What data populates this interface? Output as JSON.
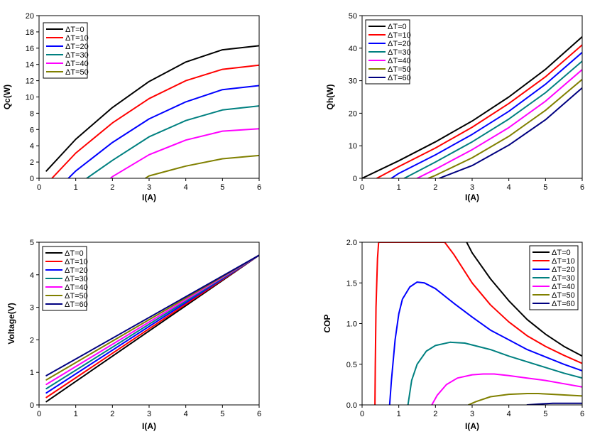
{
  "legend_labels": [
    "ΔT=0",
    "ΔT=10",
    "ΔT=20",
    "ΔT=30",
    "ΔT=40",
    "ΔT=50",
    "ΔT=60"
  ],
  "series_colors": [
    "#000000",
    "#ff0000",
    "#0000ff",
    "#008080",
    "#ff00ff",
    "#808000",
    "#000080"
  ],
  "chart_data": [
    {
      "type": "line",
      "xlabel": "I(A)",
      "ylabel": "Qc(W)",
      "xlim": [
        0,
        6
      ],
      "ylim": [
        0,
        20
      ],
      "xticks": [
        0,
        1,
        2,
        3,
        4,
        5,
        6
      ],
      "xtick_labels": [
        "0",
        "1",
        "2",
        "3",
        "4",
        "5",
        "6"
      ],
      "yticks": [
        0,
        2,
        4,
        6,
        8,
        10,
        12,
        14,
        16,
        18,
        20
      ],
      "ytick_labels": [
        "0",
        "2",
        "4",
        "6",
        "8",
        "10",
        "12",
        "14",
        "16",
        "18",
        "20"
      ],
      "legend_position": "top-left",
      "series": [
        {
          "name": "ΔT=0",
          "x": [
            0.2,
            1,
            2,
            3,
            4,
            5,
            6
          ],
          "y": [
            0.9,
            4.8,
            8.7,
            11.9,
            14.3,
            15.8,
            16.3
          ]
        },
        {
          "name": "ΔT=10",
          "x": [
            0.35,
            1,
            2,
            3,
            4,
            5,
            6
          ],
          "y": [
            0,
            3.1,
            6.8,
            9.8,
            12.0,
            13.4,
            13.9
          ]
        },
        {
          "name": "ΔT=20",
          "x": [
            0.8,
            1,
            2,
            3,
            4,
            5,
            6
          ],
          "y": [
            0,
            0.9,
            4.4,
            7.3,
            9.4,
            10.9,
            11.4
          ]
        },
        {
          "name": "ΔT=30",
          "x": [
            1.3,
            2,
            3,
            4,
            5,
            6
          ],
          "y": [
            0,
            2.2,
            5.1,
            7.1,
            8.4,
            8.9
          ]
        },
        {
          "name": "ΔT=40",
          "x": [
            1.95,
            2,
            3,
            4,
            5,
            6
          ],
          "y": [
            0,
            0.2,
            2.9,
            4.7,
            5.8,
            6.1
          ]
        },
        {
          "name": "ΔT=50",
          "x": [
            2.9,
            3,
            4,
            5,
            6
          ],
          "y": [
            0,
            0.3,
            1.5,
            2.4,
            2.8
          ]
        }
      ]
    },
    {
      "type": "line",
      "xlabel": "I(A)",
      "ylabel": "Qh(W)",
      "xlim": [
        0,
        6
      ],
      "ylim": [
        0,
        50
      ],
      "xticks": [
        0,
        1,
        2,
        3,
        4,
        5,
        6
      ],
      "xtick_labels": [
        "0",
        "1",
        "2",
        "3",
        "4",
        "5",
        "6"
      ],
      "yticks": [
        0,
        10,
        20,
        30,
        40,
        50
      ],
      "ytick_labels": [
        "0",
        "10",
        "20",
        "30",
        "40",
        "50"
      ],
      "legend_position": "top-left",
      "series": [
        {
          "name": "ΔT=0",
          "x": [
            0,
            1,
            2,
            3,
            4,
            5,
            6
          ],
          "y": [
            0,
            5.4,
            11.2,
            17.6,
            25.0,
            33.5,
            43.5
          ]
        },
        {
          "name": "ΔT=10",
          "x": [
            0.4,
            1,
            2,
            3,
            4,
            5,
            6
          ],
          "y": [
            0,
            3.6,
            9.3,
            15.7,
            23.0,
            31.2,
            41.0
          ]
        },
        {
          "name": "ΔT=20",
          "x": [
            0.8,
            1,
            2,
            3,
            4,
            5,
            6
          ],
          "y": [
            0,
            1.5,
            7.2,
            13.5,
            20.6,
            28.9,
            38.7
          ]
        },
        {
          "name": "ΔT=30",
          "x": [
            1.15,
            2,
            3,
            4,
            5,
            6
          ],
          "y": [
            0,
            5.0,
            11.2,
            18.2,
            26.3,
            36.0
          ]
        },
        {
          "name": "ΔT=40",
          "x": [
            1.5,
            2,
            3,
            4,
            5,
            6
          ],
          "y": [
            0,
            2.8,
            8.8,
            15.6,
            23.7,
            33.4
          ]
        },
        {
          "name": "ΔT=50",
          "x": [
            1.8,
            2,
            3,
            4,
            5,
            6
          ],
          "y": [
            0,
            0.9,
            6.3,
            12.9,
            20.9,
            30.4
          ]
        },
        {
          "name": "ΔT=60",
          "x": [
            2.1,
            3,
            4,
            5,
            6
          ],
          "y": [
            0,
            3.9,
            10.2,
            18.0,
            27.8
          ]
        }
      ]
    },
    {
      "type": "line",
      "xlabel": "I(A)",
      "ylabel": "Voltage(V)",
      "xlim": [
        0,
        6
      ],
      "ylim": [
        0,
        5
      ],
      "xticks": [
        0,
        1,
        2,
        3,
        4,
        5,
        6
      ],
      "xtick_labels": [
        "0",
        "1",
        "2",
        "3",
        "4",
        "5",
        "6"
      ],
      "yticks": [
        0,
        1,
        2,
        3,
        4,
        5
      ],
      "ytick_labels": [
        "0",
        "1",
        "2",
        "3",
        "4",
        "5"
      ],
      "legend_position": "top-left",
      "series": [
        {
          "name": "ΔT=0",
          "x": [
            0.2,
            6
          ],
          "y": [
            0.1,
            4.6
          ]
        },
        {
          "name": "ΔT=10",
          "x": [
            0.2,
            6
          ],
          "y": [
            0.23,
            4.6
          ]
        },
        {
          "name": "ΔT=20",
          "x": [
            0.2,
            6
          ],
          "y": [
            0.37,
            4.6
          ]
        },
        {
          "name": "ΔT=30",
          "x": [
            0.2,
            6
          ],
          "y": [
            0.5,
            4.6
          ]
        },
        {
          "name": "ΔT=40",
          "x": [
            0.2,
            6
          ],
          "y": [
            0.63,
            4.6
          ]
        },
        {
          "name": "ΔT=50",
          "x": [
            0.2,
            6
          ],
          "y": [
            0.77,
            4.6
          ]
        },
        {
          "name": "ΔT=60",
          "x": [
            0.2,
            6
          ],
          "y": [
            0.9,
            4.6
          ]
        }
      ]
    },
    {
      "type": "line",
      "xlabel": "I(A)",
      "ylabel": "COP",
      "xlim": [
        0,
        6
      ],
      "ylim": [
        0,
        2
      ],
      "xticks": [
        0,
        1,
        2,
        3,
        4,
        5,
        6
      ],
      "xtick_labels": [
        "0",
        "1",
        "2",
        "3",
        "4",
        "5",
        "6"
      ],
      "yticks": [
        0,
        0.5,
        1.0,
        1.5,
        2.0
      ],
      "ytick_labels": [
        "0.0",
        "0.5",
        "1.0",
        "1.5",
        "2.0"
      ],
      "legend_position": "top-right",
      "series": [
        {
          "name": "ΔT=0",
          "x": [
            2.85,
            3,
            3.5,
            4,
            4.5,
            5,
            5.5,
            6
          ],
          "y": [
            2.0,
            1.87,
            1.55,
            1.28,
            1.05,
            0.87,
            0.72,
            0.6
          ]
        },
        {
          "name": "ΔT=10",
          "x": [
            0.35,
            0.36,
            0.38,
            0.42,
            0.45,
            2.25,
            2.5,
            3,
            3.5,
            4,
            4.5,
            5,
            5.5,
            6
          ],
          "y": [
            0,
            0.5,
            1.2,
            1.8,
            2.0,
            2.0,
            1.85,
            1.5,
            1.23,
            1.02,
            0.85,
            0.72,
            0.61,
            0.51
          ]
        },
        {
          "name": "ΔT=20",
          "x": [
            0.75,
            0.8,
            0.9,
            1.0,
            1.1,
            1.3,
            1.5,
            1.7,
            2,
            2.5,
            3,
            3.5,
            4,
            4.5,
            5,
            5.5,
            6
          ],
          "y": [
            0,
            0.3,
            0.8,
            1.12,
            1.3,
            1.45,
            1.51,
            1.5,
            1.43,
            1.25,
            1.08,
            0.92,
            0.8,
            0.68,
            0.59,
            0.5,
            0.42
          ]
        },
        {
          "name": "ΔT=30",
          "x": [
            1.25,
            1.35,
            1.5,
            1.75,
            2,
            2.4,
            2.8,
            3.5,
            4,
            4.5,
            5,
            5.5,
            6
          ],
          "y": [
            0,
            0.3,
            0.5,
            0.66,
            0.73,
            0.77,
            0.76,
            0.68,
            0.6,
            0.53,
            0.46,
            0.39,
            0.33
          ]
        },
        {
          "name": "ΔT=40",
          "x": [
            1.9,
            2.05,
            2.3,
            2.6,
            3,
            3.3,
            3.6,
            4,
            4.5,
            5,
            5.5,
            6
          ],
          "y": [
            0,
            0.12,
            0.25,
            0.33,
            0.37,
            0.38,
            0.38,
            0.36,
            0.33,
            0.3,
            0.26,
            0.22
          ]
        },
        {
          "name": "ΔT=50",
          "x": [
            2.9,
            3.1,
            3.5,
            4,
            4.5,
            4.8,
            5.2,
            5.6,
            6
          ],
          "y": [
            0,
            0.04,
            0.1,
            0.13,
            0.14,
            0.14,
            0.13,
            0.12,
            0.11
          ]
        },
        {
          "name": "ΔT=60",
          "x": [
            4.5,
            4.8,
            5.2,
            5.6,
            6
          ],
          "y": [
            0,
            0.01,
            0.02,
            0.02,
            0.02
          ]
        }
      ]
    }
  ]
}
